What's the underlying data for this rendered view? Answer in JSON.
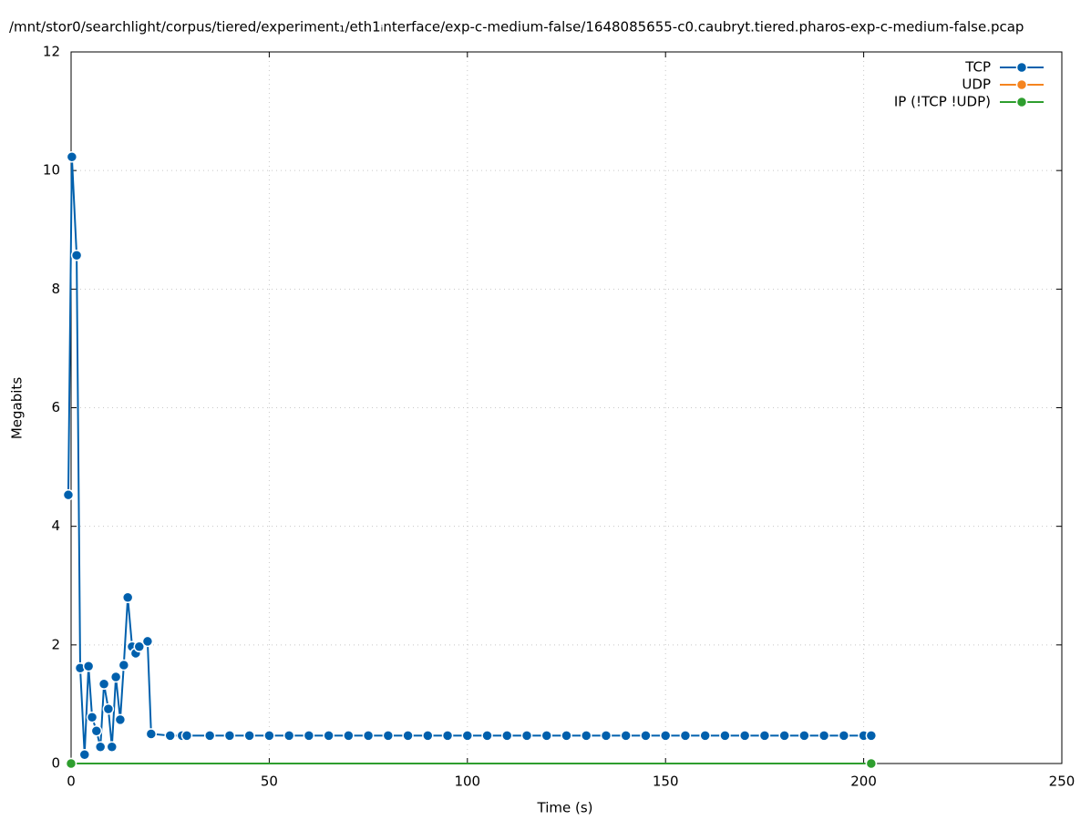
{
  "chart_data": {
    "type": "line",
    "title": "/mnt/stor0/searchlight/corpus/tiered/experiment₁/eth1ᵢnterface/exp-c-medium-false/1648085655-c0.caubryt.tiered.pharos-exp-c-medium-false.pcap",
    "x_label": "Time (s)",
    "y_label": "Megabits",
    "xlim": [
      0,
      250
    ],
    "ylim": [
      0,
      12
    ],
    "xticks": [
      0,
      50,
      100,
      150,
      200,
      250
    ],
    "yticks": [
      0,
      2,
      4,
      6,
      8,
      10,
      12
    ],
    "grid": true,
    "legend": "top-right",
    "series": [
      {
        "name": "TCP",
        "color": "#0060ad",
        "x": [
          -0.7,
          0.2,
          1.4,
          2.3,
          3.4,
          4.4,
          5.3,
          6.4,
          7.4,
          8.3,
          9.4,
          10.3,
          11.3,
          12.4,
          13.3,
          14.3,
          15.4,
          16.3,
          17.2,
          19.3,
          20.2,
          25,
          28,
          29.2,
          35,
          40,
          45,
          50,
          55,
          60,
          65,
          70,
          75,
          80,
          85,
          90,
          95,
          100,
          105,
          110,
          115,
          120,
          125,
          130,
          135,
          140,
          145,
          150,
          155,
          160,
          165,
          170,
          175,
          180,
          185,
          190,
          195,
          200,
          201.9
        ],
        "values": [
          4.53,
          10.23,
          8.57,
          1.61,
          0.15,
          1.64,
          0.78,
          0.55,
          0.28,
          1.34,
          0.92,
          0.28,
          1.46,
          0.74,
          1.66,
          2.8,
          1.97,
          1.86,
          1.97,
          2.06,
          0.5,
          0.47,
          0.47,
          0.47,
          0.47,
          0.47,
          0.47,
          0.47,
          0.47,
          0.47,
          0.47,
          0.47,
          0.47,
          0.47,
          0.47,
          0.47,
          0.47,
          0.47,
          0.47,
          0.47,
          0.47,
          0.47,
          0.47,
          0.47,
          0.47,
          0.47,
          0.47,
          0.47,
          0.47,
          0.47,
          0.47,
          0.47,
          0.47,
          0.47,
          0.47,
          0.47,
          0.47,
          0.47,
          0.47
        ]
      },
      {
        "name": "UDP",
        "color": "#f5841f",
        "x": [
          0,
          201.9
        ],
        "values": [
          0,
          0
        ]
      },
      {
        "name": "IP (!TCP  !UDP)",
        "color": "#2e9e2e",
        "x": [
          0,
          201.9
        ],
        "values": [
          0,
          0
        ]
      }
    ]
  }
}
